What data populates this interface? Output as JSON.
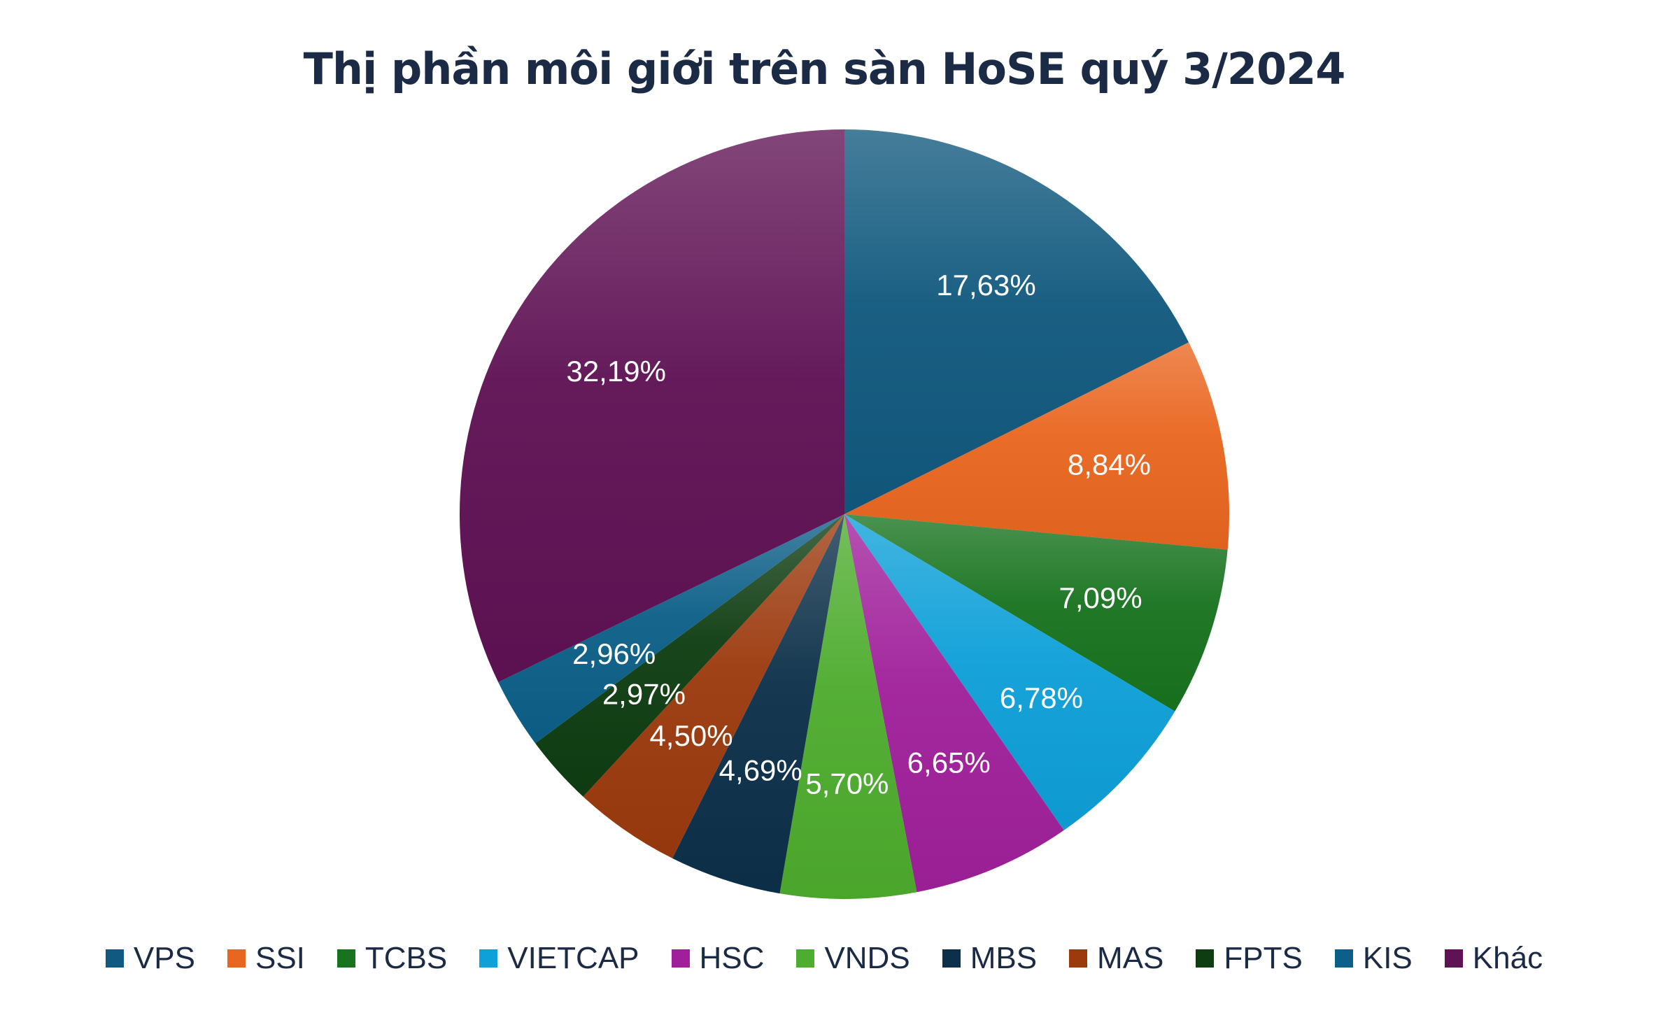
{
  "chart_data": {
    "type": "pie",
    "title": "Thị phần môi giới trên sàn HoSE quý 3/2024",
    "slices": [
      {
        "name": "VPS",
        "value": 17.63,
        "label": "17,63%",
        "color": "#11597e"
      },
      {
        "name": "SSI",
        "value": 8.84,
        "label": "8,84%",
        "color": "#e96620"
      },
      {
        "name": "TCBS",
        "value": 7.09,
        "label": "7,09%",
        "color": "#18731f"
      },
      {
        "name": "VIETCAP",
        "value": 6.78,
        "label": "6,78%",
        "color": "#0ea0d8"
      },
      {
        "name": "HSC",
        "value": 6.65,
        "label": "6,65%",
        "color": "#a0209b"
      },
      {
        "name": "VNDS",
        "value": 5.7,
        "label": "5,70%",
        "color": "#4eac2e"
      },
      {
        "name": "MBS",
        "value": 4.69,
        "label": "4,69%",
        "color": "#0c3049"
      },
      {
        "name": "MAS",
        "value": 4.5,
        "label": "4,50%",
        "color": "#9c3a0e"
      },
      {
        "name": "FPTS",
        "value": 2.97,
        "label": "2,97%",
        "color": "#0f3d12"
      },
      {
        "name": "KIS",
        "value": 2.96,
        "label": "2,96%",
        "color": "#0c5f88"
      },
      {
        "name": "Khác",
        "value": 32.19,
        "label": "32,19%",
        "color": "#5f1254"
      }
    ],
    "legend_position": "bottom",
    "start_angle": "12 o'clock",
    "direction": "clockwise"
  }
}
